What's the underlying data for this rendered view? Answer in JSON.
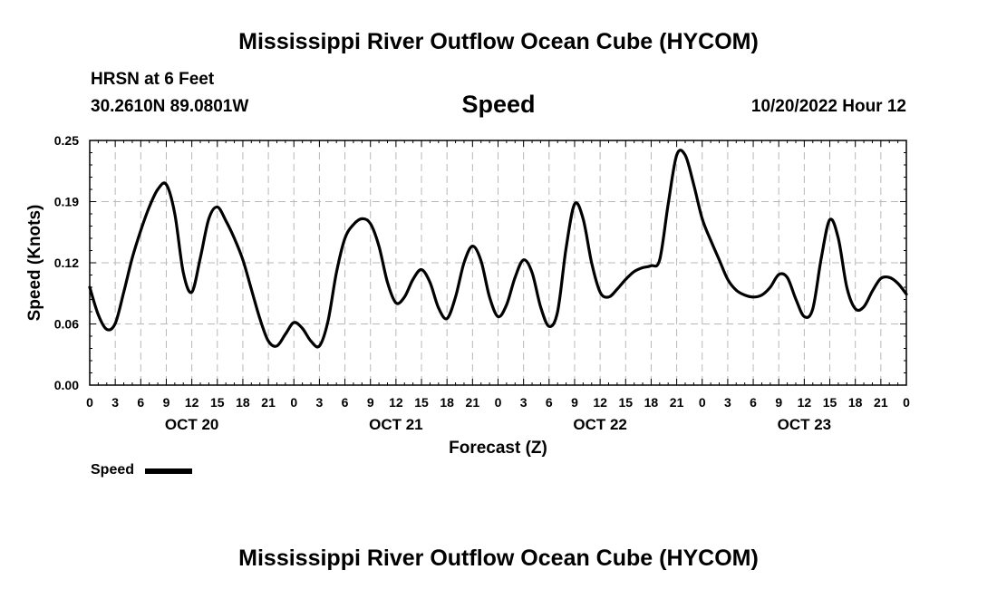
{
  "header": {
    "title_top": "Mississippi River Outflow Ocean Cube (HYCOM)",
    "station": "HRSN at 6 Feet",
    "coords": "30.2610N  89.0801W",
    "variable": "Speed",
    "timestamp": "10/20/2022 Hour 12",
    "title_bottom": "Mississippi River Outflow Ocean Cube (HYCOM)"
  },
  "legend": {
    "label": "Speed",
    "color": "#000000"
  },
  "chart_data": {
    "type": "line",
    "title": "Speed",
    "xlabel": "Forecast (Z)",
    "ylabel": "Speed (Knots)",
    "ylim": [
      0.0,
      0.25
    ],
    "xlim": [
      0,
      96
    ],
    "x_unit": "forecast hour from 0Z Oct 20",
    "y_ticks": [
      "0.00",
      "0.06",
      "0.12",
      "0.19",
      "0.25"
    ],
    "y_tick_values": [
      0.0,
      0.0625,
      0.125,
      0.1875,
      0.25
    ],
    "x_ticks": [
      0,
      3,
      6,
      9,
      12,
      15,
      18,
      21,
      24,
      27,
      30,
      33,
      36,
      39,
      42,
      45,
      48,
      51,
      54,
      57,
      60,
      63,
      66,
      69,
      72,
      75,
      78,
      81,
      84,
      87,
      90,
      93,
      96
    ],
    "x_tick_labels": [
      "0",
      "3",
      "6",
      "9",
      "12",
      "15",
      "18",
      "21",
      "0",
      "3",
      "6",
      "9",
      "12",
      "15",
      "18",
      "21",
      "0",
      "3",
      "6",
      "9",
      "12",
      "15",
      "18",
      "21",
      "0",
      "3",
      "6",
      "9",
      "12",
      "15",
      "18",
      "21",
      "0"
    ],
    "day_labels": [
      {
        "label": "OCT 20",
        "x": 12
      },
      {
        "label": "OCT 21",
        "x": 36
      },
      {
        "label": "OCT 22",
        "x": 60
      },
      {
        "label": "OCT 23",
        "x": 84
      }
    ],
    "grid": true,
    "legend_position": "bottom-left",
    "series": [
      {
        "name": "Speed",
        "color": "#000000",
        "points": [
          [
            0,
            0.1
          ],
          [
            1,
            0.072
          ],
          [
            2,
            0.057
          ],
          [
            3,
            0.063
          ],
          [
            4,
            0.095
          ],
          [
            5,
            0.13
          ],
          [
            6,
            0.158
          ],
          [
            7,
            0.182
          ],
          [
            8,
            0.2
          ],
          [
            9,
            0.205
          ],
          [
            10,
            0.175
          ],
          [
            11,
            0.115
          ],
          [
            12,
            0.095
          ],
          [
            13,
            0.13
          ],
          [
            14,
            0.17
          ],
          [
            15,
            0.182
          ],
          [
            16,
            0.168
          ],
          [
            17,
            0.15
          ],
          [
            18,
            0.128
          ],
          [
            19,
            0.098
          ],
          [
            20,
            0.068
          ],
          [
            21,
            0.045
          ],
          [
            22,
            0.04
          ],
          [
            23,
            0.052
          ],
          [
            24,
            0.064
          ],
          [
            25,
            0.058
          ],
          [
            26,
            0.045
          ],
          [
            27,
            0.04
          ],
          [
            28,
            0.065
          ],
          [
            29,
            0.115
          ],
          [
            30,
            0.15
          ],
          [
            31,
            0.164
          ],
          [
            32,
            0.17
          ],
          [
            33,
            0.165
          ],
          [
            34,
            0.142
          ],
          [
            35,
            0.105
          ],
          [
            36,
            0.084
          ],
          [
            37,
            0.09
          ],
          [
            38,
            0.108
          ],
          [
            39,
            0.118
          ],
          [
            40,
            0.105
          ],
          [
            41,
            0.079
          ],
          [
            42,
            0.068
          ],
          [
            43,
            0.09
          ],
          [
            44,
            0.125
          ],
          [
            45,
            0.142
          ],
          [
            46,
            0.127
          ],
          [
            47,
            0.09
          ],
          [
            48,
            0.07
          ],
          [
            49,
            0.082
          ],
          [
            50,
            0.11
          ],
          [
            51,
            0.128
          ],
          [
            52,
            0.115
          ],
          [
            53,
            0.08
          ],
          [
            54,
            0.06
          ],
          [
            55,
            0.075
          ],
          [
            56,
            0.14
          ],
          [
            57,
            0.185
          ],
          [
            58,
            0.17
          ],
          [
            59,
            0.125
          ],
          [
            60,
            0.095
          ],
          [
            61,
            0.09
          ],
          [
            62,
            0.098
          ],
          [
            63,
            0.108
          ],
          [
            64,
            0.116
          ],
          [
            65,
            0.12
          ],
          [
            66,
            0.122
          ],
          [
            67,
            0.128
          ],
          [
            68,
            0.185
          ],
          [
            69,
            0.235
          ],
          [
            70,
            0.235
          ],
          [
            71,
            0.205
          ],
          [
            72,
            0.17
          ],
          [
            73,
            0.148
          ],
          [
            74,
            0.128
          ],
          [
            75,
            0.108
          ],
          [
            76,
            0.097
          ],
          [
            77,
            0.092
          ],
          [
            78,
            0.09
          ],
          [
            79,
            0.092
          ],
          [
            80,
            0.1
          ],
          [
            81,
            0.113
          ],
          [
            82,
            0.11
          ],
          [
            83,
            0.088
          ],
          [
            84,
            0.07
          ],
          [
            85,
            0.078
          ],
          [
            86,
            0.13
          ],
          [
            87,
            0.169
          ],
          [
            88,
            0.15
          ],
          [
            89,
            0.1
          ],
          [
            90,
            0.078
          ],
          [
            91,
            0.08
          ],
          [
            92,
            0.096
          ],
          [
            93,
            0.109
          ],
          [
            94,
            0.11
          ],
          [
            95,
            0.104
          ],
          [
            96,
            0.093
          ]
        ]
      }
    ]
  }
}
